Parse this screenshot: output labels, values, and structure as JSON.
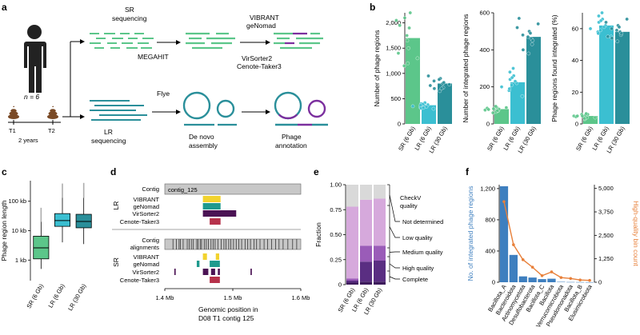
{
  "panel_labels": [
    "a",
    "b",
    "c",
    "d",
    "e",
    "f"
  ],
  "a": {
    "n_label": "n = 6",
    "t1": "T1",
    "t2": "T2",
    "years": "2 years",
    "sr_seq": [
      "SR",
      "sequencing"
    ],
    "lr_seq": [
      "LR",
      "sequencing"
    ],
    "megahit": "MEGAHIT",
    "flye": "Flye",
    "tools": [
      "VIBRANT",
      "geNomad",
      "VirSorter2",
      "Cenote-Taker3"
    ],
    "assembly": [
      "De novo",
      "assembly"
    ],
    "annotation": [
      "Phage",
      "annotation"
    ],
    "colors": {
      "sr": "#5cc68a",
      "lr": "#2a8f9a",
      "phage": "#7b2f9e"
    }
  },
  "chart_data": [
    {
      "id": "b1",
      "type": "bar",
      "categories": [
        "SR (6 Gb)",
        "LR (6 Gb)",
        "LR (30 Gb)"
      ],
      "values": [
        1700,
        370,
        800
      ],
      "points": [
        [
          1650,
          1900,
          2050,
          2200,
          1400,
          1200,
          1750,
          1500,
          1950,
          1300,
          1150,
          2100
        ],
        [
          300,
          330,
          350,
          380,
          400,
          420,
          310,
          360,
          390,
          340,
          370,
          320
        ],
        [
          650,
          700,
          720,
          800,
          850,
          900,
          950,
          780,
          760,
          820,
          880,
          700
        ]
      ],
      "ylabel": "Number of phage regions",
      "ylim": [
        0,
        2200
      ],
      "yticks": [
        "0",
        "500",
        "1,000",
        "1,500",
        "2,000"
      ],
      "ytick_values": [
        0,
        500,
        1000,
        1500,
        2000
      ],
      "colors": [
        "#5cc68a",
        "#3bbfd1",
        "#2a8f9a"
      ]
    },
    {
      "id": "b2",
      "type": "bar",
      "categories": [
        "SR (6 Gb)",
        "LR (6 Gb)",
        "LR (30 Gb)"
      ],
      "values": [
        80,
        225,
        470
      ],
      "points": [
        [
          65,
          70,
          75,
          80,
          85,
          90,
          95,
          72,
          78,
          88,
          60,
          82
        ],
        [
          150,
          180,
          200,
          220,
          240,
          260,
          280,
          300,
          210,
          230,
          190,
          250
        ],
        [
          380,
          400,
          430,
          460,
          480,
          500,
          520,
          540,
          570,
          450,
          470,
          490
        ]
      ],
      "ylabel": "Number of integrated phage regions",
      "ylim": [
        0,
        600
      ],
      "yticks": [
        "0",
        "200",
        "400",
        "600"
      ],
      "ytick_values": [
        0,
        200,
        400,
        600
      ],
      "colors": [
        "#5cc68a",
        "#3bbfd1",
        "#2a8f9a"
      ]
    },
    {
      "id": "b3",
      "type": "bar",
      "categories": [
        "SR (6 Gb)",
        "LR (6 Gb)",
        "LR (30 Gb)"
      ],
      "values": [
        5,
        62,
        58
      ],
      "points": [
        [
          3,
          4,
          5,
          6,
          4.5,
          5.5,
          3.5,
          6.5,
          5,
          4,
          6,
          5
        ],
        [
          55,
          58,
          60,
          62,
          64,
          66,
          68,
          70,
          59,
          61,
          57,
          65
        ],
        [
          52,
          54,
          56,
          58,
          60,
          62,
          64,
          66,
          55,
          57,
          59,
          61
        ]
      ],
      "ylabel": "Phage regions found integrated (%)",
      "ylim": [
        0,
        70
      ],
      "yticks": [
        "0",
        "20",
        "40",
        "60"
      ],
      "ytick_values": [
        0,
        20,
        40,
        60
      ],
      "colors": [
        "#5cc68a",
        "#3bbfd1",
        "#2a8f9a"
      ]
    },
    {
      "id": "c",
      "type": "box",
      "categories": [
        "SR (6 Gb)",
        "LR (6 Gb)",
        "LR (30 Gb)"
      ],
      "ylabel": "Phage region length",
      "yscale": "log",
      "yticks": [
        "1 kb",
        "10 kb",
        "100 kb"
      ],
      "ytick_values": [
        1000,
        10000,
        100000
      ],
      "ylim": [
        200,
        500000
      ],
      "boxes": [
        {
          "whislo": 500,
          "q1": 1100,
          "med": 2600,
          "q3": 6500,
          "whishi": 20000,
          "fliers_max": 60000
        },
        {
          "whislo": 4000,
          "q1": 14000,
          "med": 22000,
          "q3": 38000,
          "whishi": 130000,
          "fliers_max": 400000
        },
        {
          "whislo": 3500,
          "q1": 12500,
          "med": 20500,
          "q3": 36000,
          "whishi": 130000,
          "fliers_max": 420000
        }
      ],
      "colors": [
        "#5cc68a",
        "#3bbfd1",
        "#2a8f9a"
      ]
    },
    {
      "id": "d",
      "type": "tracks",
      "contig_label": "contig_125",
      "xlim": [
        1.4,
        1.6
      ],
      "xticks": [
        "1.4 Mb",
        "1.5 Mb",
        "1.6 Mb"
      ],
      "xtick_values": [
        1.4,
        1.5,
        1.6
      ],
      "xlabel": [
        "Genomic position in",
        "D08 T1 contig 125"
      ],
      "group_labels": [
        "LR",
        "SR"
      ],
      "lr_rows": [
        "Contig",
        "VIBRANT",
        "geNomad",
        "VirSorter2",
        "Cenote-Taker3"
      ],
      "sr_rows": [
        "Contig",
        "alignments",
        "VIBRANT",
        "geNomad",
        "VirSorter2",
        "Cenote-Taker3"
      ],
      "lr_segments": [
        {
          "row": 1,
          "start": 1.456,
          "end": 1.482,
          "color": "#f2d32e"
        },
        {
          "row": 2,
          "start": 1.456,
          "end": 1.482,
          "color": "#1e9a8e"
        },
        {
          "row": 3,
          "start": 1.456,
          "end": 1.505,
          "color": "#4b1354"
        },
        {
          "row": 4,
          "start": 1.466,
          "end": 1.482,
          "color": "#b6324b"
        }
      ],
      "sr_segments": [
        {
          "row": 2,
          "start": 1.456,
          "end": 1.462,
          "color": "#f2d32e"
        },
        {
          "row": 2,
          "start": 1.475,
          "end": 1.48,
          "color": "#f2d32e"
        },
        {
          "row": 3,
          "start": 1.447,
          "end": 1.451,
          "color": "#1e9a8e"
        },
        {
          "row": 3,
          "start": 1.466,
          "end": 1.481,
          "color": "#1e9a8e"
        },
        {
          "row": 4,
          "start": 1.414,
          "end": 1.416,
          "color": "#4b1354"
        },
        {
          "row": 4,
          "start": 1.456,
          "end": 1.464,
          "color": "#4b1354"
        },
        {
          "row": 4,
          "start": 1.468,
          "end": 1.474,
          "color": "#4b1354"
        },
        {
          "row": 4,
          "start": 1.478,
          "end": 1.481,
          "color": "#4b1354"
        },
        {
          "row": 4,
          "start": 1.526,
          "end": 1.528,
          "color": "#4b1354"
        },
        {
          "row": 5,
          "start": 1.466,
          "end": 1.481,
          "color": "#b6324b"
        }
      ],
      "alignment_ticks": [
        1.412,
        1.417,
        1.421,
        1.423,
        1.427,
        1.433,
        1.436,
        1.439,
        1.442,
        1.447,
        1.449,
        1.452,
        1.454,
        1.458,
        1.461,
        1.464,
        1.468,
        1.471,
        1.474,
        1.478,
        1.483,
        1.487,
        1.49,
        1.494,
        1.497,
        1.501,
        1.505,
        1.509,
        1.513,
        1.518,
        1.522,
        1.526,
        1.531,
        1.535,
        1.54,
        1.546,
        1.551,
        1.557,
        1.563,
        1.568,
        1.574,
        1.581,
        1.588,
        1.594
      ]
    },
    {
      "id": "e",
      "type": "stacked_bar",
      "categories": [
        "SR (6 Gb)",
        "LR (6 Gb)",
        "LR (30 Gb)"
      ],
      "ylabel": "Fraction",
      "ylim": [
        0,
        1
      ],
      "yticks": [
        "0",
        "0.25",
        "0.50",
        "0.75",
        "1.00"
      ],
      "ytick_values": [
        0,
        0.25,
        0.5,
        0.75,
        1.0
      ],
      "series": [
        {
          "name": "Complete",
          "values": [
            0.02,
            0.03,
            0.03
          ],
          "color": "#3d1a5b"
        },
        {
          "name": "High quality",
          "values": [
            0.02,
            0.2,
            0.21
          ],
          "color": "#5a2e82"
        },
        {
          "name": "Medium quality",
          "values": [
            0.02,
            0.16,
            0.15
          ],
          "color": "#9a5cb8"
        },
        {
          "name": "Low quality",
          "values": [
            0.72,
            0.46,
            0.47
          ],
          "color": "#d6a9dc"
        },
        {
          "name": "Not determined",
          "values": [
            0.22,
            0.15,
            0.14
          ],
          "color": "#d9d9d9"
        }
      ],
      "legend_title": [
        "CheckV",
        "quality"
      ],
      "legend_entries": [
        "Not determined",
        "Low quality",
        "Medium quality",
        "High quality",
        "Complete"
      ]
    },
    {
      "id": "f",
      "type": "bar_line",
      "categories": [
        "Bacillota_A",
        "Bacteroidota",
        "Actinomycetota",
        "Desulfobacterota",
        "Bacillota_C",
        "Bacillota",
        "Verrucomicrobiota",
        "Pseudomonadota",
        "Bacillota_B",
        "Elusimicrobiota"
      ],
      "values": [
        1230,
        350,
        75,
        60,
        40,
        45,
        5,
        3,
        2,
        1
      ],
      "line_values": [
        4300,
        2000,
        1200,
        800,
        350,
        550,
        250,
        200,
        120,
        100
      ],
      "ylabel": "No. of integrated phage regions",
      "y2label": "High-quality bin count",
      "ylim": [
        0,
        1250
      ],
      "yticks": [
        "0",
        "400",
        "800",
        "1,200"
      ],
      "ytick_values": [
        0,
        400,
        800,
        1200
      ],
      "y2lim": [
        0,
        5200
      ],
      "y2ticks": [
        "0",
        "1,250",
        "2,500",
        "3,750",
        "5,000"
      ],
      "y2tick_values": [
        0,
        1250,
        2500,
        3750,
        5000
      ],
      "bar_color": "#3e7fbf",
      "line_color": "#e8803a"
    }
  ]
}
